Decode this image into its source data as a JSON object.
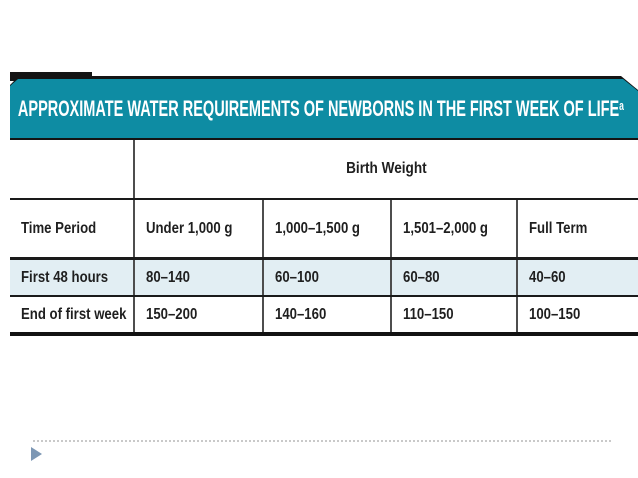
{
  "slide": {
    "title": "APPROXIMATE WATER REQUIREMENTS OF NEWBORNS IN THE FIRST WEEK OF LIFE",
    "title_superscript": "a",
    "colors": {
      "header_teal": "#0e8ca3",
      "row_highlight_blue": "#e2eef3",
      "rule_black": "#1a1a1a",
      "divider_gray": "#4d4d4d",
      "arrow_blue_gray": "#7d97b4",
      "dotted_line_gray": "#c9c9c9"
    }
  },
  "table": {
    "group_header": "Birth Weight",
    "columns": [
      "Time Period",
      "Under 1,000 g",
      "1,000–1,500 g",
      "1,501–2,000 g",
      "Full Term"
    ],
    "rows": [
      {
        "label": "First 48 hours",
        "values": [
          "80–140",
          "60–100",
          "60–80",
          "40–60"
        ]
      },
      {
        "label": "End of first week",
        "values": [
          "150–200",
          "140–160",
          "110–150",
          "100–150"
        ]
      }
    ]
  },
  "chart_data": {
    "type": "table",
    "title": "APPROXIMATE WATER REQUIREMENTS OF NEWBORNS IN THE FIRST WEEK OF LIFE",
    "column_group_label": "Birth Weight",
    "columns": [
      "Time Period",
      "Under 1,000 g",
      "1,000–1,500 g",
      "1,501–2,000 g",
      "Full Term"
    ],
    "rows": [
      [
        "First 48 hours",
        "80–140",
        "60–100",
        "60–80",
        "40–60"
      ],
      [
        "End of first week",
        "150–200",
        "140–160",
        "110–150",
        "100–150"
      ]
    ]
  }
}
